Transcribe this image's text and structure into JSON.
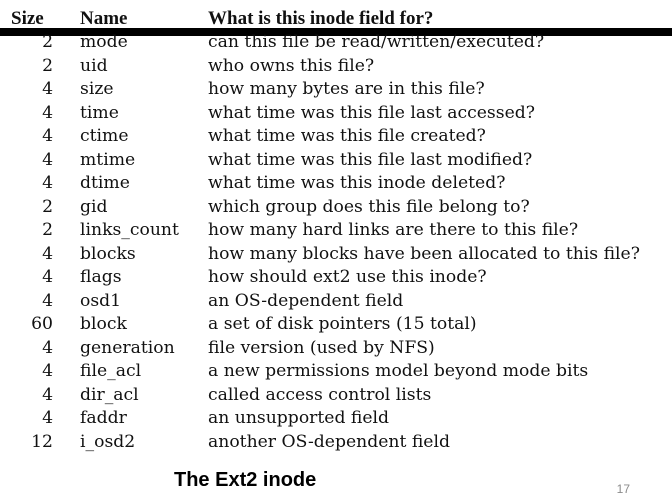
{
  "table": {
    "headers": {
      "size": "Size",
      "name": "Name",
      "description": "What is this inode field for?"
    },
    "rows": [
      {
        "size": "2",
        "name": "mode",
        "description": "can this file be read/written/executed?"
      },
      {
        "size": "2",
        "name": "uid",
        "description": "who owns this file?"
      },
      {
        "size": "4",
        "name": "size",
        "description": "how many bytes are in this file?"
      },
      {
        "size": "4",
        "name": "time",
        "description": "what time was this file last accessed?"
      },
      {
        "size": "4",
        "name": "ctime",
        "description": "what time was this file created?"
      },
      {
        "size": "4",
        "name": "mtime",
        "description": "what time was this file last modified?"
      },
      {
        "size": "4",
        "name": "dtime",
        "description": "what time was this inode deleted?"
      },
      {
        "size": "2",
        "name": "gid",
        "description": "which group does this file belong to?"
      },
      {
        "size": "2",
        "name": "links_count",
        "description": "how many hard links are there to this file?"
      },
      {
        "size": "4",
        "name": "blocks",
        "description": "how many blocks have been allocated to this file?"
      },
      {
        "size": "4",
        "name": "flags",
        "description": "how should ext2 use this inode?"
      },
      {
        "size": "4",
        "name": "osd1",
        "description": "an OS-dependent field"
      },
      {
        "size": "60",
        "name": "block",
        "description": "a set of disk pointers (15 total)"
      },
      {
        "size": "4",
        "name": "generation",
        "description": "file version (used by NFS)"
      },
      {
        "size": "4",
        "name": "file_acl",
        "description": "a new permissions model beyond mode bits"
      },
      {
        "size": "4",
        "name": "dir_acl",
        "description": "called access control lists"
      },
      {
        "size": "4",
        "name": "faddr",
        "description": "an unsupported field"
      },
      {
        "size": "12",
        "name": "i_osd2",
        "description": "another OS-dependent field"
      }
    ]
  },
  "slide": {
    "title": "The Ext2 inode",
    "page_number": "17"
  }
}
